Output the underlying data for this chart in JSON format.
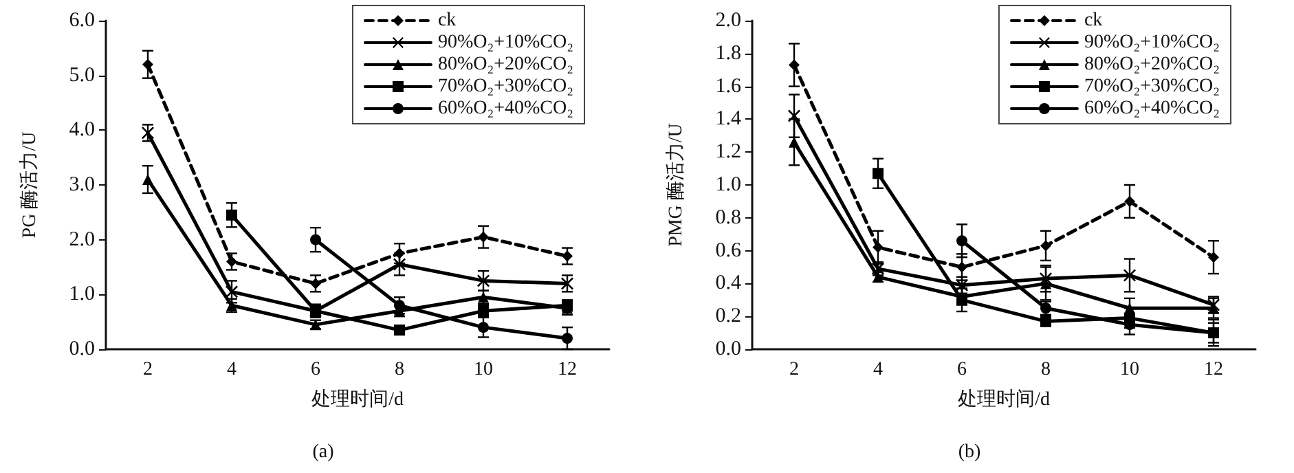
{
  "chart_data": [
    {
      "type": "line",
      "xlabel": "处理时间/d",
      "ylabel": "PG 酶活力/U",
      "annotations": [
        "(a)"
      ],
      "categories": [
        "2",
        "4",
        "6",
        "8",
        "10",
        "12"
      ],
      "ylim": [
        0,
        6
      ],
      "yticks": [
        {
          "value": 0,
          "label": "0.0"
        },
        {
          "value": 1,
          "label": "1.0"
        },
        {
          "value": 2,
          "label": "2.0"
        },
        {
          "value": 3,
          "label": "3.0"
        },
        {
          "value": 4,
          "label": "4.0"
        },
        {
          "value": 5,
          "label": "5.0"
        },
        {
          "value": 6,
          "label": "6.0"
        }
      ],
      "grid": false,
      "legend": "top right",
      "series": [
        {
          "name": "ck",
          "color": "#000000",
          "marker": "diamond",
          "line_style": "dashed",
          "values": [
            5.2,
            1.6,
            1.2,
            1.75,
            2.05,
            1.7
          ],
          "errors": [
            0.25,
            0.15,
            0.15,
            0.18,
            0.2,
            0.15
          ]
        },
        {
          "name": "90%O₂+10%CO₂",
          "color": "#000000",
          "marker": "cross",
          "line_style": "solid",
          "values": [
            3.95,
            1.05,
            0.7,
            1.55,
            1.25,
            1.2
          ],
          "errors": [
            0.15,
            0.2,
            0.12,
            0.2,
            0.18,
            0.15
          ]
        },
        {
          "name": "80%O₂+20%CO₂",
          "color": "#000000",
          "marker": "triangle",
          "line_style": "solid",
          "values": [
            3.1,
            0.8,
            0.45,
            0.7,
            0.95,
            0.75
          ],
          "errors": [
            0.25,
            0.12,
            0.08,
            0.1,
            0.12,
            0.12
          ]
        },
        {
          "name": "70%O₂+30%CO₂",
          "color": "#000000",
          "marker": "square",
          "line_style": "solid",
          "values": [
            null,
            2.45,
            0.7,
            0.35,
            0.7,
            0.8
          ],
          "errors": [
            null,
            0.22,
            0.1,
            0.06,
            0.1,
            0.1
          ]
        },
        {
          "name": "60%O₂+40%CO₂",
          "color": "#000000",
          "marker": "circle",
          "line_style": "solid",
          "values": [
            null,
            null,
            2.0,
            0.8,
            0.4,
            0.2
          ],
          "errors": [
            null,
            null,
            0.22,
            0.15,
            0.18,
            0.2
          ]
        }
      ]
    },
    {
      "type": "line",
      "xlabel": "处理时间/d",
      "ylabel": "PMG 酶活力/U",
      "annotations": [
        "(b)"
      ],
      "categories": [
        "2",
        "4",
        "6",
        "8",
        "10",
        "12"
      ],
      "ylim": [
        0,
        2
      ],
      "yticks": [
        {
          "value": 0,
          "label": "0.0"
        },
        {
          "value": 0.2,
          "label": "0.2"
        },
        {
          "value": 0.4,
          "label": "0.4"
        },
        {
          "value": 0.6,
          "label": "0.6"
        },
        {
          "value": 0.8,
          "label": "0.8"
        },
        {
          "value": 1,
          "label": "1.0"
        },
        {
          "value": 1.2,
          "label": "1.2"
        },
        {
          "value": 1.4,
          "label": "1.4"
        },
        {
          "value": 1.6,
          "label": "1.6"
        },
        {
          "value": 1.8,
          "label": "1.8"
        },
        {
          "value": 2,
          "label": "2.0"
        }
      ],
      "grid": false,
      "legend": "top right",
      "series": [
        {
          "name": "ck",
          "color": "#000000",
          "marker": "diamond",
          "line_style": "dashed",
          "values": [
            1.73,
            0.62,
            0.5,
            0.63,
            0.9,
            0.56
          ],
          "errors": [
            0.13,
            0.1,
            0.08,
            0.09,
            0.1,
            0.1
          ]
        },
        {
          "name": "90%O₂+10%CO₂",
          "color": "#000000",
          "marker": "cross",
          "line_style": "solid",
          "values": [
            1.42,
            0.49,
            0.39,
            0.43,
            0.45,
            0.27
          ],
          "errors": [
            0.13,
            0.04,
            0.05,
            0.08,
            0.1,
            0.05
          ]
        },
        {
          "name": "80%O₂+20%CO₂",
          "color": "#000000",
          "marker": "triangle",
          "line_style": "solid",
          "values": [
            1.26,
            0.44,
            0.32,
            0.4,
            0.25,
            0.25
          ],
          "errors": [
            0.14,
            0.03,
            0.05,
            0.1,
            0.06,
            0.06
          ]
        },
        {
          "name": "70%O₂+30%CO₂",
          "color": "#000000",
          "marker": "square",
          "line_style": "solid",
          "values": [
            null,
            1.07,
            0.3,
            0.17,
            0.19,
            0.1
          ],
          "errors": [
            null,
            0.09,
            0.07,
            0.03,
            0.06,
            0.06
          ]
        },
        {
          "name": "60%O₂+40%CO₂",
          "color": "#000000",
          "marker": "circle",
          "line_style": "solid",
          "values": [
            null,
            null,
            0.66,
            0.25,
            0.15,
            0.1
          ],
          "errors": [
            null,
            null,
            0.1,
            0.04,
            0.06,
            0.08
          ]
        }
      ]
    }
  ]
}
